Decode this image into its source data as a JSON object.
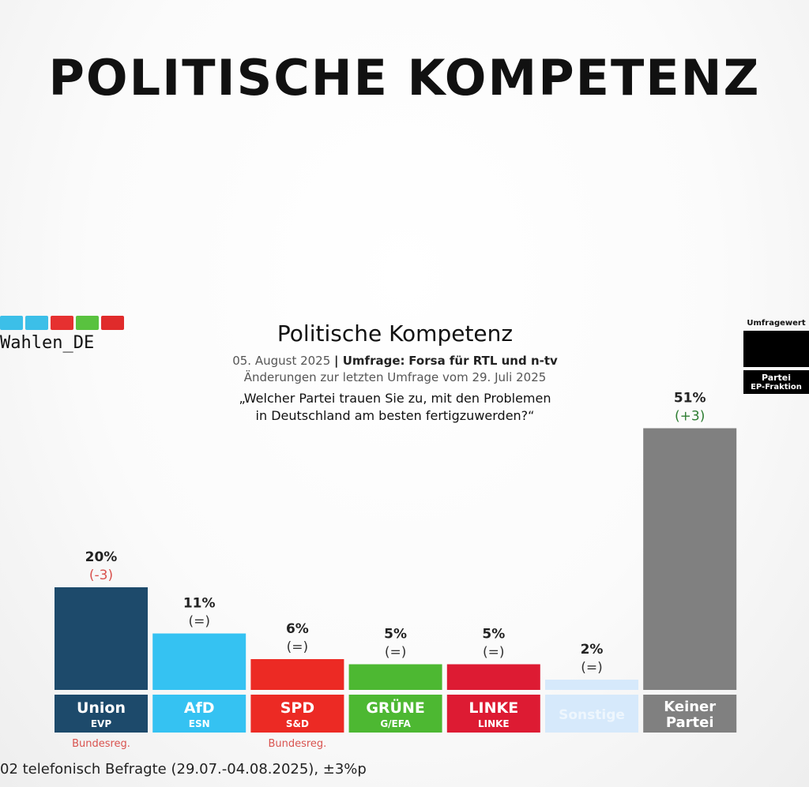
{
  "header": {
    "title": "POLITISCHE KOMPETENZ"
  },
  "logo": {
    "text": "Wahlen_DE",
    "colors": [
      "#3cbfe8",
      "#3cbfe8",
      "#e63030",
      "#59c23f",
      "#e02b2b"
    ]
  },
  "legend": {
    "top": "Umfragewert",
    "party": "Partei",
    "faction": "EP-Fraktion"
  },
  "chart_data": {
    "type": "bar",
    "title": "Politische Kompetenz",
    "date": "05. August 2025",
    "source_label": "Umfrage:",
    "source": "Forsa für RTL und n-tv",
    "changes_note": "Änderungen zur letzten Umfrage vom 29. Juli 2025",
    "question_line1": "„Welcher Partei trauen Sie zu, mit den Problemen",
    "question_line2": "in Deutschland am besten fertigzuwerden?“",
    "ylim": [
      0,
      60
    ],
    "bars": [
      {
        "party": "Union",
        "faction": "EVP",
        "value": 20,
        "value_label": "20%",
        "change": "-3",
        "change_label": "(-3)",
        "change_color": "#d9534f",
        "color": "#1d4a6b",
        "note": "Bundesreg."
      },
      {
        "party": "AfD",
        "faction": "ESN",
        "value": 11,
        "value_label": "11%",
        "change": "=",
        "change_label": "(=)",
        "change_color": "#333333",
        "color": "#35c2f2",
        "note": ""
      },
      {
        "party": "SPD",
        "faction": "S&D",
        "value": 6,
        "value_label": "6%",
        "change": "=",
        "change_label": "(=)",
        "change_color": "#333333",
        "color": "#ec2a24",
        "note": "Bundesreg."
      },
      {
        "party": "GRÜNE",
        "faction": "G/EFA",
        "value": 5,
        "value_label": "5%",
        "change": "=",
        "change_label": "(=)",
        "change_color": "#333333",
        "color": "#4db832",
        "note": ""
      },
      {
        "party": "LINKE",
        "faction": "LINKE",
        "value": 5,
        "value_label": "5%",
        "change": "=",
        "change_label": "(=)",
        "change_color": "#333333",
        "color": "#dd1b33",
        "note": ""
      },
      {
        "party": "Sonstige",
        "faction": "",
        "value": 2,
        "value_label": "2%",
        "change": "=",
        "change_label": "(=)",
        "change_color": "#333333",
        "color": "#d6e9fb",
        "note": ""
      },
      {
        "party": "Keiner",
        "party_line2": "Partei",
        "faction": "",
        "value": 51,
        "value_label": "51%",
        "change": "+3",
        "change_label": "(+3)",
        "change_color": "#2e7d32",
        "color": "#808080",
        "note": ""
      }
    ]
  },
  "footer": {
    "note": "02 telefonisch Befragte (29.07.-04.08.2025), ±3%p"
  }
}
